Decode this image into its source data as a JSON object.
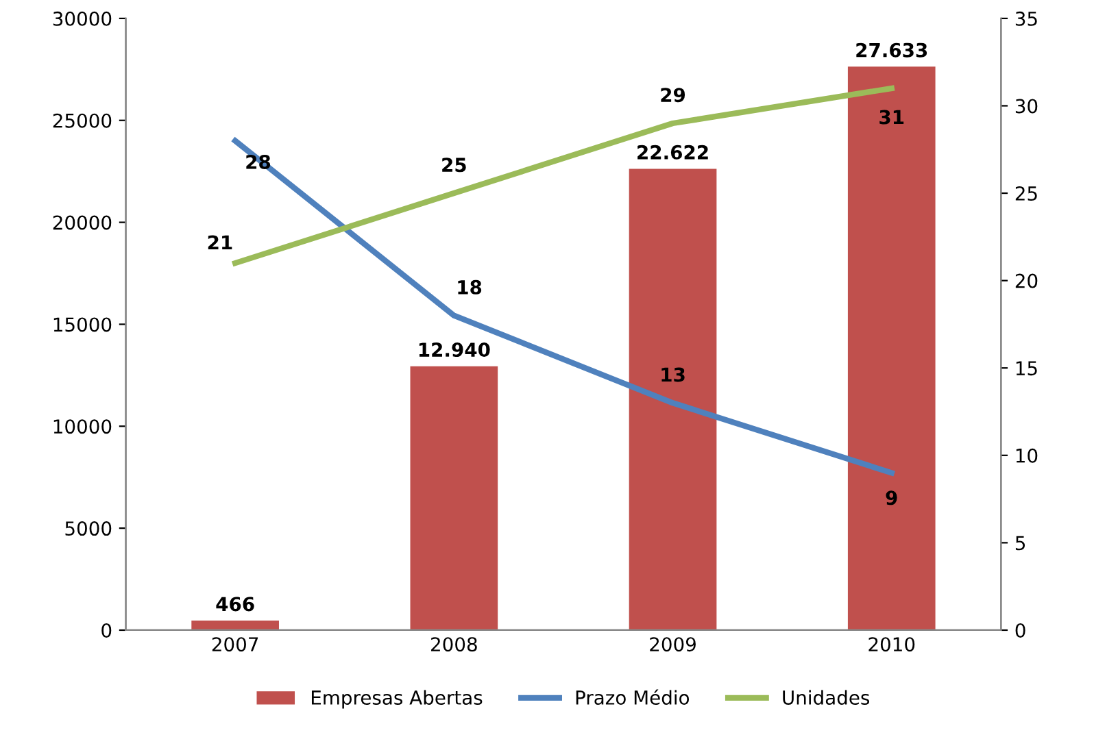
{
  "chart_data": {
    "type": "bar",
    "categories": [
      "2007",
      "2008",
      "2009",
      "2010"
    ],
    "series": [
      {
        "name": "Empresas Abertas",
        "color": "#c0504d",
        "values": [
          466,
          12940,
          22622,
          27633
        ],
        "value_labels": [
          "466",
          "12.940",
          "22.622",
          "27.633"
        ]
      },
      {
        "name": "Prazo Médio",
        "type": "line",
        "axis": "y2",
        "color": "#4f81bd",
        "values": [
          28,
          18,
          13,
          9
        ],
        "value_labels": [
          "28",
          "18",
          "13",
          "9"
        ]
      },
      {
        "name": "Unidades",
        "type": "line",
        "axis": "y2",
        "color": "#9bbb59",
        "values": [
          21,
          25,
          29,
          31
        ],
        "value_labels": [
          "21",
          "25",
          "29",
          "31"
        ]
      }
    ],
    "ylim": [
      0,
      30000
    ],
    "yticks": [
      0,
      5000,
      10000,
      15000,
      20000,
      25000,
      30000
    ],
    "y2lim": [
      0,
      35
    ],
    "y2ticks": [
      0,
      5,
      10,
      15,
      20,
      25,
      30,
      35
    ],
    "grid": false,
    "legend": "bottom",
    "marker": "none",
    "line_style": "solid"
  }
}
